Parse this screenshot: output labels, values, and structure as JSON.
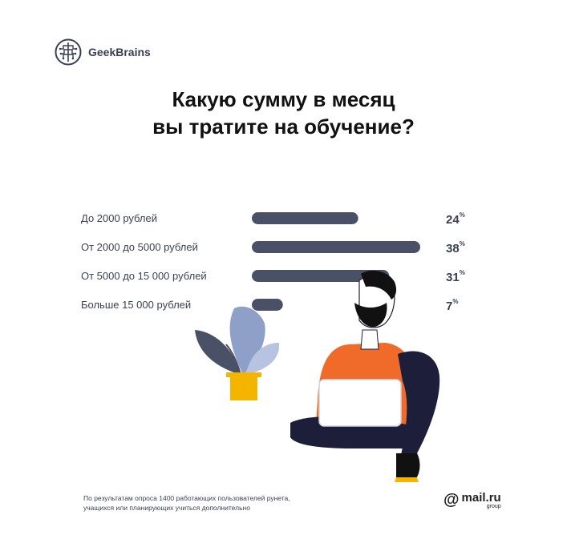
{
  "brand": {
    "name": "GeekBrains",
    "logo_icon": "brain-icon"
  },
  "title": {
    "line1": "Какую сумму в месяц",
    "line2": "вы тратите на обучение?"
  },
  "colors": {
    "bar": "#4a5066",
    "text": "#3a3f55",
    "shirt": "#f06a2a",
    "pants": "#1d1f3a",
    "pot": "#f5b400",
    "leaves": "#8fa0c8"
  },
  "chart_data": {
    "type": "bar",
    "orientation": "horizontal",
    "categories": [
      "До 2000 рублей",
      "От 2000 до 5000 рублей",
      "От 5000 до 15 000 рублей",
      "Больше 15 000 рублей"
    ],
    "values": [
      24,
      38,
      31,
      7
    ],
    "value_labels": [
      "24",
      "38",
      "31",
      "7"
    ],
    "unit": "%",
    "xlim": [
      0,
      38
    ],
    "title": "Какую сумму в месяц вы тратите на обучение?"
  },
  "footnote": {
    "line1": "По результатам опроса 1400 работающих пользователей рунета,",
    "line2": "учащихся или планирующих учиться дополнительно"
  },
  "partner": {
    "at_sign": "@",
    "name": "mail.ru",
    "sub": "group"
  }
}
